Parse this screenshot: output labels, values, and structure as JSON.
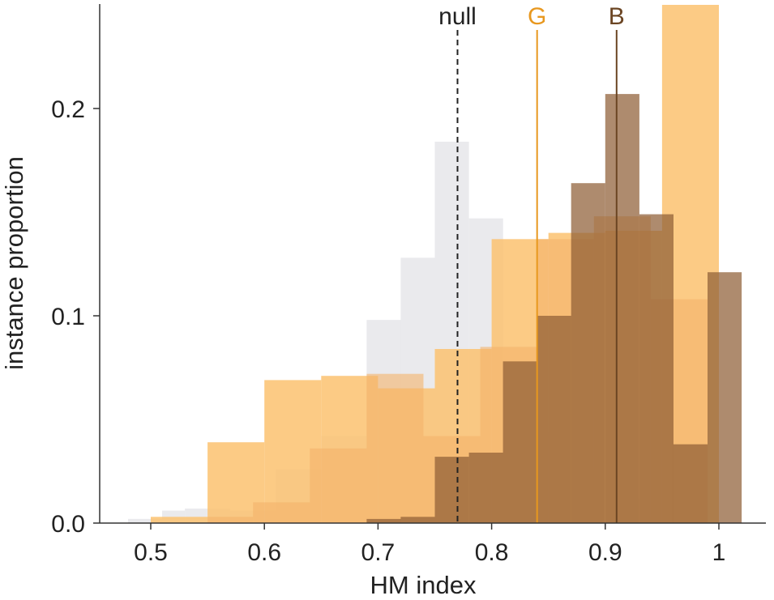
{
  "chart_data": {
    "type": "bar",
    "xlabel": "HM index",
    "ylabel": "instance proportion",
    "xlim": [
      0.455,
      1.025
    ],
    "ylim": [
      0,
      0.25
    ],
    "x_ticks": [
      {
        "value": 0.5,
        "label": "0.5"
      },
      {
        "value": 0.6,
        "label": "0.6"
      },
      {
        "value": 0.7,
        "label": "0.7"
      },
      {
        "value": 0.8,
        "label": "0.8"
      },
      {
        "value": 0.9,
        "label": "0.9"
      },
      {
        "value": 1.0,
        "label": "1"
      }
    ],
    "y_ticks": [
      {
        "value": 0.0,
        "label": "0.0"
      },
      {
        "value": 0.1,
        "label": "0.1"
      },
      {
        "value": 0.2,
        "label": "0.2"
      }
    ],
    "grid": false,
    "histograms": [
      {
        "color": "#e6e6ea",
        "opacity": 0.85,
        "bins": [
          [
            0.48,
            0.51,
            0.002
          ],
          [
            0.51,
            0.53,
            0.006
          ],
          [
            0.53,
            0.57,
            0.007
          ],
          [
            0.57,
            0.61,
            0.006
          ],
          [
            0.61,
            0.65,
            0.026
          ],
          [
            0.65,
            0.69,
            0.042
          ],
          [
            0.69,
            0.72,
            0.098
          ],
          [
            0.72,
            0.75,
            0.128
          ],
          [
            0.75,
            0.78,
            0.184
          ],
          [
            0.78,
            0.81,
            0.147
          ],
          [
            0.81,
            0.84,
            0.078
          ],
          [
            0.84,
            0.87,
            0.044
          ],
          [
            0.87,
            0.9,
            0.026
          ],
          [
            0.9,
            0.93,
            0.012
          ],
          [
            0.93,
            0.96,
            0.003
          ]
        ]
      },
      {
        "color": "#fcc270",
        "opacity": 0.85,
        "bins": [
          [
            0.5,
            0.55,
            0.003
          ],
          [
            0.55,
            0.6,
            0.039
          ],
          [
            0.6,
            0.65,
            0.069
          ],
          [
            0.65,
            0.7,
            0.071
          ],
          [
            0.7,
            0.75,
            0.065
          ],
          [
            0.75,
            0.8,
            0.084
          ],
          [
            0.8,
            0.85,
            0.137
          ],
          [
            0.85,
            0.9,
            0.14
          ],
          [
            0.9,
            0.95,
            0.141
          ],
          [
            0.95,
            1.0,
            0.25
          ]
        ]
      },
      {
        "color": "#f4b36a",
        "opacity": 0.6,
        "bins": [
          [
            0.55,
            0.59,
            0.003
          ],
          [
            0.59,
            0.64,
            0.01
          ],
          [
            0.64,
            0.69,
            0.036
          ],
          [
            0.69,
            0.74,
            0.072
          ],
          [
            0.74,
            0.79,
            0.042
          ],
          [
            0.79,
            0.84,
            0.085
          ],
          [
            0.84,
            0.89,
            0.137
          ],
          [
            0.89,
            0.94,
            0.148
          ],
          [
            0.94,
            0.99,
            0.108
          ]
        ]
      },
      {
        "color": "#8f5e36",
        "opacity": 0.72,
        "bins": [
          [
            0.69,
            0.72,
            0.002
          ],
          [
            0.72,
            0.75,
            0.003
          ],
          [
            0.75,
            0.78,
            0.032
          ],
          [
            0.78,
            0.81,
            0.034
          ],
          [
            0.81,
            0.84,
            0.078
          ],
          [
            0.84,
            0.87,
            0.1
          ],
          [
            0.87,
            0.9,
            0.164
          ],
          [
            0.9,
            0.93,
            0.207
          ],
          [
            0.93,
            0.96,
            0.149
          ],
          [
            0.96,
            0.99,
            0.038
          ],
          [
            0.99,
            1.02,
            0.121
          ]
        ]
      }
    ],
    "markers": [
      {
        "label": "null",
        "x": 0.77,
        "color": "#222222",
        "dashed": true
      },
      {
        "label": "G",
        "x": 0.84,
        "color": "#e8981f",
        "dashed": false
      },
      {
        "label": "B",
        "x": 0.91,
        "color": "#6b4523",
        "dashed": false
      }
    ]
  }
}
